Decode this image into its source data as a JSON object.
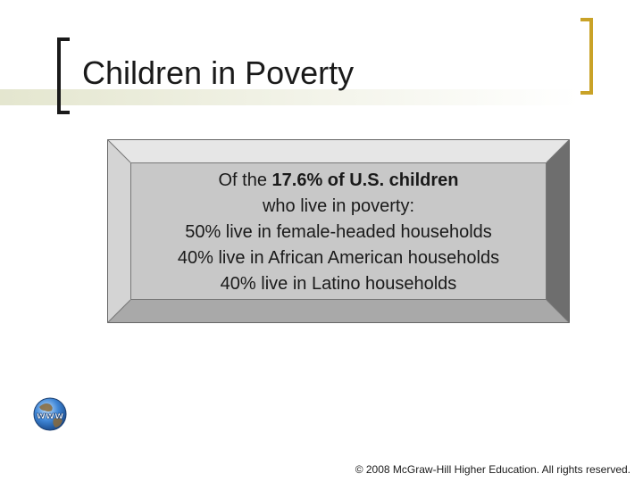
{
  "slide": {
    "title": "Children in Poverty",
    "box": {
      "line1_prefix": "Of the ",
      "line1_bold": "17.6% of U.S. children",
      "line2": "who live in poverty:",
      "line3": "50% live in female-headed households",
      "line4": "40% live in African American households",
      "line5": "40% live in Latino households"
    },
    "icon": {
      "name": "www-globe-icon",
      "label": "www"
    },
    "footer": "© 2008 McGraw-Hill Higher Education. All rights reserved."
  },
  "colors": {
    "left_bracket": "#1a1a1a",
    "right_bracket": "#c9a227",
    "box_face": "#c8c8c8",
    "title_band": "#e4e6cf"
  }
}
